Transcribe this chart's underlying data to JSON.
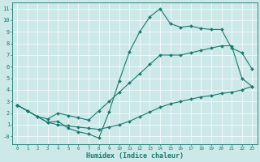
{
  "background_color": "#cce8e8",
  "grid_color": "#ffffff",
  "line_color": "#1a7a6e",
  "xlabel": "Humidex (Indice chaleur)",
  "xlim": [
    -0.5,
    23.5
  ],
  "ylim": [
    -0.7,
    11.5
  ],
  "yticks": [
    0,
    1,
    2,
    3,
    4,
    5,
    6,
    7,
    8,
    9,
    10,
    11
  ],
  "xticks": [
    0,
    1,
    2,
    3,
    4,
    5,
    6,
    7,
    8,
    9,
    10,
    11,
    12,
    13,
    14,
    15,
    16,
    17,
    18,
    19,
    20,
    21,
    22,
    23
  ],
  "series1_x": [
    0,
    1,
    2,
    3,
    4,
    5,
    6,
    7,
    8,
    9,
    10,
    11,
    12,
    13,
    14,
    15,
    16,
    17,
    18,
    19,
    20,
    21,
    22,
    23
  ],
  "series1_y": [
    2.7,
    2.2,
    1.7,
    1.2,
    1.3,
    0.7,
    0.4,
    0.2,
    -0.15,
    2.1,
    4.8,
    7.3,
    9.0,
    10.3,
    11.0,
    9.7,
    9.4,
    9.5,
    9.3,
    9.2,
    9.2,
    7.6,
    7.2,
    5.8
  ],
  "series2_x": [
    0,
    1,
    2,
    3,
    4,
    5,
    6,
    7,
    8,
    9,
    10,
    11,
    12,
    13,
    14,
    15,
    16,
    17,
    18,
    19,
    20,
    21,
    22,
    23
  ],
  "series2_y": [
    2.7,
    2.2,
    1.7,
    1.5,
    2.0,
    1.8,
    1.6,
    1.4,
    2.2,
    3.0,
    3.8,
    4.6,
    5.4,
    6.2,
    7.0,
    7.0,
    7.0,
    7.2,
    7.4,
    7.6,
    7.8,
    7.8,
    5.0,
    4.3
  ],
  "series3_x": [
    0,
    1,
    2,
    3,
    4,
    5,
    6,
    7,
    8,
    9,
    10,
    11,
    12,
    13,
    14,
    15,
    16,
    17,
    18,
    19,
    20,
    21,
    22,
    23
  ],
  "series3_y": [
    2.7,
    2.2,
    1.7,
    1.2,
    1.0,
    0.9,
    0.8,
    0.7,
    0.6,
    0.8,
    1.0,
    1.3,
    1.7,
    2.1,
    2.5,
    2.8,
    3.0,
    3.2,
    3.4,
    3.5,
    3.7,
    3.8,
    4.0,
    4.3
  ],
  "ytick_labels": [
    "-0",
    "1",
    "2",
    "3",
    "4",
    "5",
    "6",
    "7",
    "8",
    "9",
    "10",
    "11"
  ]
}
